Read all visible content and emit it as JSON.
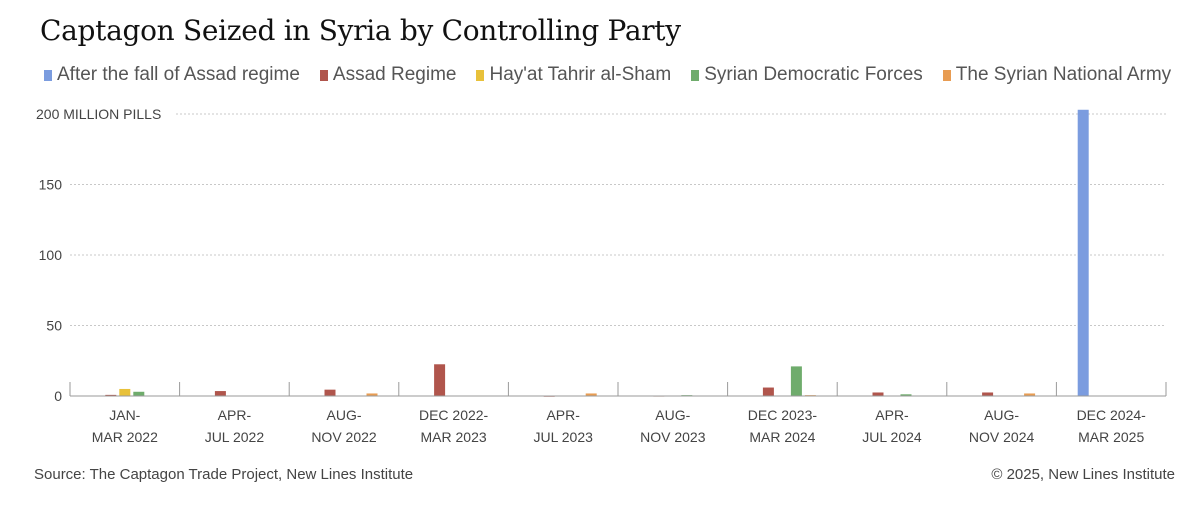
{
  "chart_data": {
    "type": "bar",
    "title": "Captagon Seized in Syria by Controlling Party",
    "ylabel": "MILLION PILLS",
    "ylim": [
      0,
      200
    ],
    "yticks": [
      0,
      50,
      100,
      150,
      200
    ],
    "ytick_labels": [
      "0",
      "50",
      "100",
      "150",
      "200 MILLION PILLS"
    ],
    "categories": [
      [
        "JAN-",
        "MAR 2022"
      ],
      [
        "APR-",
        "JUL 2022"
      ],
      [
        "AUG-",
        "NOV 2022"
      ],
      [
        "DEC 2022-",
        "MAR 2023"
      ],
      [
        "APR-",
        "JUL 2023"
      ],
      [
        "AUG-",
        "NOV 2023"
      ],
      [
        "DEC 2023-",
        "MAR 2024"
      ],
      [
        "APR-",
        "JUL 2024"
      ],
      [
        "AUG-",
        "NOV 2024"
      ],
      [
        "DEC 2024-",
        "MAR 2025"
      ]
    ],
    "series": [
      {
        "name": "After the fall of Assad regime",
        "color": "#7b9cdf",
        "values": [
          0,
          0,
          0,
          0,
          0,
          0,
          0,
          0,
          0,
          203
        ]
      },
      {
        "name": "Assad Regime",
        "color": "#b0554c",
        "values": [
          0.8,
          3.5,
          4.5,
          22.5,
          0.2,
          0.3,
          6,
          2.5,
          2.5,
          0
        ]
      },
      {
        "name": "Hay'at Tahrir al-Sham",
        "color": "#e8c13a",
        "values": [
          5,
          0,
          0,
          0,
          0,
          0,
          0,
          0,
          0,
          0
        ]
      },
      {
        "name": "Syrian Democratic Forces",
        "color": "#6fac6c",
        "values": [
          3,
          0,
          0,
          0,
          0,
          0.6,
          21,
          1.2,
          0,
          0
        ]
      },
      {
        "name": "The Syrian National Army",
        "color": "#e89c52",
        "values": [
          0,
          0,
          1.8,
          0,
          1.8,
          0,
          0.6,
          0,
          1.8,
          0
        ]
      }
    ],
    "legend_position": "top-left",
    "grid": true
  },
  "footer": {
    "source": "Source: The Captagon Trade Project, New Lines Institute",
    "copyright": "© 2025, New Lines Institute"
  }
}
